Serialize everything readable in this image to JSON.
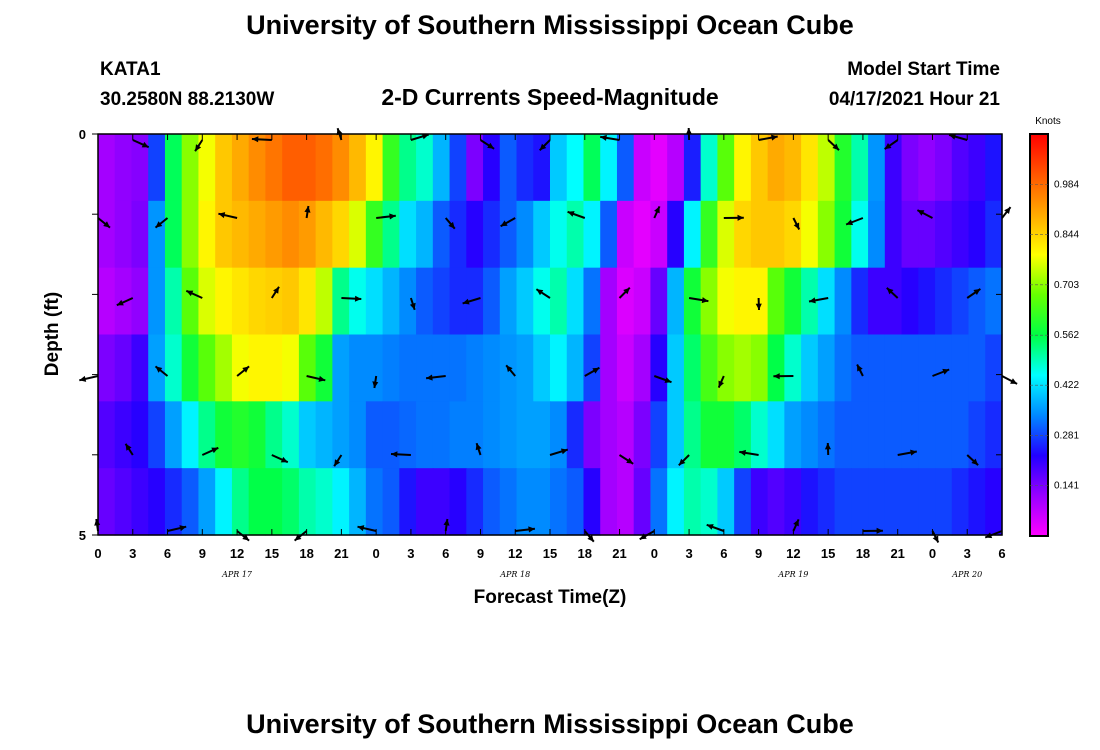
{
  "header": {
    "title": "University of Southern Mississippi Ocean Cube",
    "station": "KATA1",
    "coords": "30.2580N  88.2130W",
    "plot_title": "2-D Currents Speed-Magnitude",
    "model_label": "Model Start Time",
    "model_time": "04/17/2021 Hour 21"
  },
  "footer": {
    "title": "University of Southern Mississippi Ocean Cube"
  },
  "chart_data": {
    "type": "heatmap",
    "xlabel": "Forecast Time(Z)",
    "ylabel": "Depth (ft)",
    "x_range_hours": [
      0,
      78
    ],
    "y_range_ft": [
      0,
      5
    ],
    "y_ticks": [
      "0",
      "5"
    ],
    "x_tick_labels": [
      "0",
      "3",
      "6",
      "9",
      "12",
      "15",
      "18",
      "21",
      "0",
      "3",
      "6",
      "9",
      "12",
      "15",
      "18",
      "21",
      "0",
      "3",
      "6",
      "9",
      "12",
      "15",
      "18",
      "21",
      "0",
      "3",
      "6"
    ],
    "date_labels": [
      {
        "label": "APR 17",
        "hour": 12
      },
      {
        "label": "APR 18",
        "hour": 36
      },
      {
        "label": "APR 19",
        "hour": 60
      },
      {
        "label": "APR 20",
        "hour": 75
      }
    ],
    "colorbar": {
      "unit": "Knots",
      "min": 0.0,
      "max": 1.125,
      "ticks": [
        "0.984",
        "0.844",
        "0.703",
        "0.562",
        "0.422",
        "0.281",
        "0.141"
      ],
      "colors": [
        "#ff00ff",
        "#9900ff",
        "#2200ff",
        "#0088ff",
        "#00ffff",
        "#00ff44",
        "#66ff00",
        "#ffff00",
        "#ffaa00",
        "#ff5500",
        "#ff0000"
      ]
    },
    "rows_top_to_bottom": [
      [
        0.1,
        0.12,
        0.13,
        0.28,
        0.55,
        0.7,
        0.78,
        0.86,
        0.9,
        0.94,
        0.97,
        1.0,
        1.0,
        0.98,
        0.94,
        0.88,
        0.8,
        0.62,
        0.52,
        0.48,
        0.38,
        0.28,
        0.14,
        0.22,
        0.3,
        0.26,
        0.24,
        0.4,
        0.45,
        0.55,
        0.44,
        0.3,
        0.06,
        0.03,
        0.08,
        0.25,
        0.48,
        0.66,
        0.8,
        0.86,
        0.9,
        0.88,
        0.82,
        0.74,
        0.6,
        0.5,
        0.35,
        0.2,
        0.14,
        0.12,
        0.14,
        0.18,
        0.2,
        0.24
      ],
      [
        0.1,
        0.12,
        0.14,
        0.35,
        0.55,
        0.7,
        0.8,
        0.86,
        0.88,
        0.9,
        0.92,
        0.94,
        0.92,
        0.88,
        0.84,
        0.76,
        0.62,
        0.52,
        0.42,
        0.38,
        0.3,
        0.26,
        0.22,
        0.26,
        0.3,
        0.34,
        0.4,
        0.46,
        0.5,
        0.44,
        0.3,
        0.06,
        0.03,
        0.06,
        0.22,
        0.44,
        0.62,
        0.76,
        0.84,
        0.86,
        0.86,
        0.84,
        0.78,
        0.7,
        0.58,
        0.46,
        0.34,
        0.2,
        0.16,
        0.16,
        0.18,
        0.2,
        0.22,
        0.26
      ],
      [
        0.08,
        0.1,
        0.12,
        0.35,
        0.5,
        0.66,
        0.76,
        0.8,
        0.82,
        0.84,
        0.85,
        0.86,
        0.82,
        0.74,
        0.52,
        0.46,
        0.42,
        0.38,
        0.34,
        0.3,
        0.28,
        0.26,
        0.26,
        0.3,
        0.36,
        0.4,
        0.46,
        0.5,
        0.42,
        0.32,
        0.1,
        0.04,
        0.06,
        0.16,
        0.38,
        0.58,
        0.7,
        0.78,
        0.8,
        0.8,
        0.66,
        0.58,
        0.5,
        0.42,
        0.34,
        0.26,
        0.2,
        0.2,
        0.22,
        0.24,
        0.26,
        0.28,
        0.3,
        0.32
      ],
      [
        0.14,
        0.16,
        0.2,
        0.36,
        0.48,
        0.58,
        0.66,
        0.72,
        0.78,
        0.8,
        0.8,
        0.78,
        0.66,
        0.58,
        0.36,
        0.34,
        0.34,
        0.33,
        0.32,
        0.32,
        0.32,
        0.32,
        0.33,
        0.34,
        0.35,
        0.36,
        0.4,
        0.44,
        0.38,
        0.28,
        0.1,
        0.06,
        0.1,
        0.22,
        0.4,
        0.54,
        0.64,
        0.7,
        0.72,
        0.7,
        0.56,
        0.48,
        0.4,
        0.36,
        0.32,
        0.3,
        0.3,
        0.3,
        0.3,
        0.3,
        0.3,
        0.3,
        0.3,
        0.28
      ],
      [
        0.18,
        0.2,
        0.22,
        0.28,
        0.36,
        0.44,
        0.52,
        0.58,
        0.6,
        0.58,
        0.52,
        0.48,
        0.4,
        0.38,
        0.36,
        0.34,
        0.3,
        0.3,
        0.31,
        0.32,
        0.32,
        0.33,
        0.33,
        0.34,
        0.35,
        0.36,
        0.36,
        0.34,
        0.26,
        0.14,
        0.1,
        0.08,
        0.14,
        0.28,
        0.4,
        0.52,
        0.58,
        0.58,
        0.54,
        0.48,
        0.42,
        0.36,
        0.34,
        0.32,
        0.3,
        0.3,
        0.3,
        0.3,
        0.3,
        0.3,
        0.3,
        0.3,
        0.28,
        0.26
      ],
      [
        0.16,
        0.18,
        0.2,
        0.22,
        0.26,
        0.3,
        0.36,
        0.44,
        0.52,
        0.56,
        0.56,
        0.54,
        0.5,
        0.48,
        0.44,
        0.38,
        0.32,
        0.3,
        0.24,
        0.2,
        0.2,
        0.22,
        0.26,
        0.3,
        0.32,
        0.34,
        0.34,
        0.32,
        0.3,
        0.22,
        0.1,
        0.08,
        0.16,
        0.32,
        0.44,
        0.5,
        0.48,
        0.4,
        0.28,
        0.2,
        0.18,
        0.2,
        0.24,
        0.26,
        0.28,
        0.28,
        0.28,
        0.28,
        0.28,
        0.28,
        0.28,
        0.26,
        0.24,
        0.22
      ]
    ]
  }
}
